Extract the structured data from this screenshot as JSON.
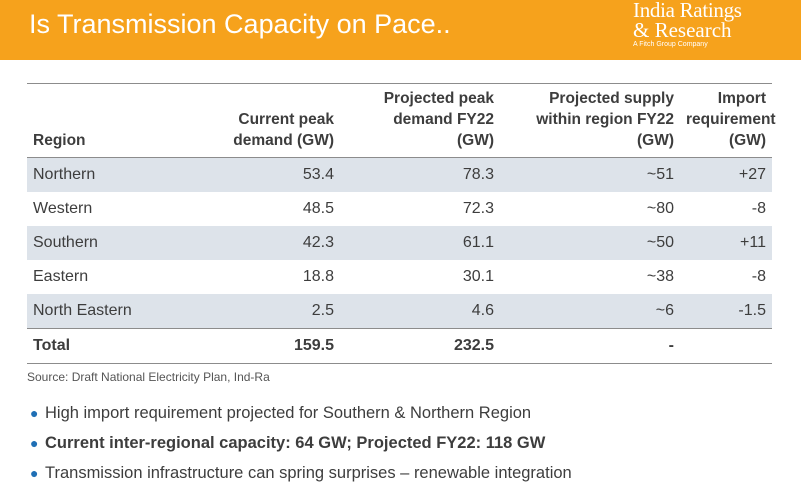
{
  "header": {
    "title": "Is Transmission Capacity on Pace..",
    "logo": {
      "line1": "India Ratings",
      "line2": "& Research",
      "sub": "A Fitch Group Company"
    },
    "color": "#f6a21c"
  },
  "table": {
    "columns": [
      "Region",
      "Current peak demand (GW)",
      "Projected peak demand FY22 (GW)",
      "Projected supply within region FY22 (GW)",
      "Import requirement (GW)"
    ],
    "rows": [
      [
        "Northern",
        "53.4",
        "78.3",
        "~51",
        "+27"
      ],
      [
        "Western",
        "48.5",
        "72.3",
        "~80",
        "-8"
      ],
      [
        "Southern",
        "42.3",
        "61.1",
        "~50",
        "+11"
      ],
      [
        "Eastern",
        "18.8",
        "30.1",
        "~38",
        "-8"
      ],
      [
        "North Eastern",
        "2.5",
        "4.6",
        "~6",
        "-1.5"
      ]
    ],
    "total": [
      "Total",
      "159.5",
      "232.5",
      "-",
      ""
    ],
    "shade_color": "#dde3ea"
  },
  "source": "Source: Draft National Electricity Plan, Ind-Ra",
  "bullets": [
    {
      "text": "High import requirement projected for Southern & Northern Region",
      "bold": false
    },
    {
      "text": "Current inter-regional capacity: 64 GW; Projected FY22: 118 GW",
      "bold": true
    },
    {
      "text": "Transmission infrastructure can spring surprises – renewable integration",
      "bold": false
    }
  ]
}
